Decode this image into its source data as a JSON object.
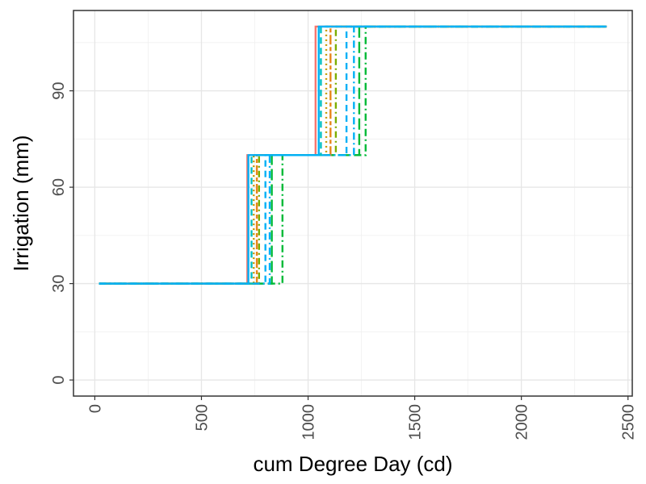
{
  "chart_data": {
    "type": "line",
    "step": true,
    "title": "",
    "xlabel": "cum Degree Day (cd)",
    "ylabel": "Irrigation (mm)",
    "xlim": [
      -100,
      2520
    ],
    "ylim": [
      -5,
      115
    ],
    "x_ticks": [
      0,
      500,
      1000,
      1500,
      2000,
      2500
    ],
    "y_ticks": [
      0,
      30,
      60,
      90
    ],
    "grid": true,
    "legend": "none",
    "colors": [
      "#F8766D",
      "#00BA38",
      "#00B0F6",
      "#7CAE00",
      "#00BFC4",
      "#E7861A",
      "#C49A00"
    ],
    "series": [
      {
        "color": "#F8766D",
        "dash": "solid",
        "x": [
          20,
          715,
          715,
          1035,
          1035,
          2400
        ],
        "y": [
          30,
          30,
          70,
          70,
          110,
          110
        ]
      },
      {
        "color": "#00BA38",
        "dash": "dashdot",
        "x": [
          20,
          880,
          880,
          1270,
          1270,
          2400
        ],
        "y": [
          30,
          30,
          70,
          70,
          110,
          110
        ]
      },
      {
        "color": "#7CAE00",
        "dash": "dotdash",
        "x": [
          20,
          770,
          770,
          1130,
          1130,
          2400
        ],
        "y": [
          30,
          30,
          70,
          70,
          110,
          110
        ]
      },
      {
        "color": "#00B0F6",
        "dash": "dashed",
        "x": [
          20,
          800,
          800,
          1180,
          1180,
          2400
        ],
        "y": [
          30,
          30,
          70,
          70,
          110,
          110
        ]
      },
      {
        "color": "#C49A00",
        "dash": "dotted",
        "x": [
          20,
          745,
          745,
          1085,
          1085,
          2400
        ],
        "y": [
          30,
          30,
          70,
          70,
          110,
          110
        ]
      },
      {
        "color": "#00BA38",
        "dash": "longdash",
        "x": [
          20,
          830,
          830,
          1240,
          1240,
          2400
        ],
        "y": [
          30,
          30,
          70,
          70,
          110,
          110
        ]
      },
      {
        "color": "#E7861A",
        "dash": "twodash",
        "x": [
          20,
          760,
          760,
          1105,
          1105,
          2400
        ],
        "y": [
          30,
          30,
          70,
          70,
          110,
          110
        ]
      },
      {
        "color": "#00B0F6",
        "dash": "dashdot",
        "x": [
          20,
          820,
          820,
          1215,
          1215,
          2400
        ],
        "y": [
          30,
          30,
          70,
          70,
          110,
          110
        ]
      },
      {
        "color": "#00BFC4",
        "dash": "dashed",
        "x": [
          20,
          735,
          735,
          1060,
          1060,
          2400
        ],
        "y": [
          30,
          30,
          70,
          70,
          110,
          110
        ]
      },
      {
        "color": "#00B0F6",
        "dash": "solid",
        "x": [
          20,
          720,
          720,
          1050,
          1050,
          2400
        ],
        "y": [
          30,
          30,
          70,
          70,
          110,
          110
        ]
      }
    ]
  }
}
